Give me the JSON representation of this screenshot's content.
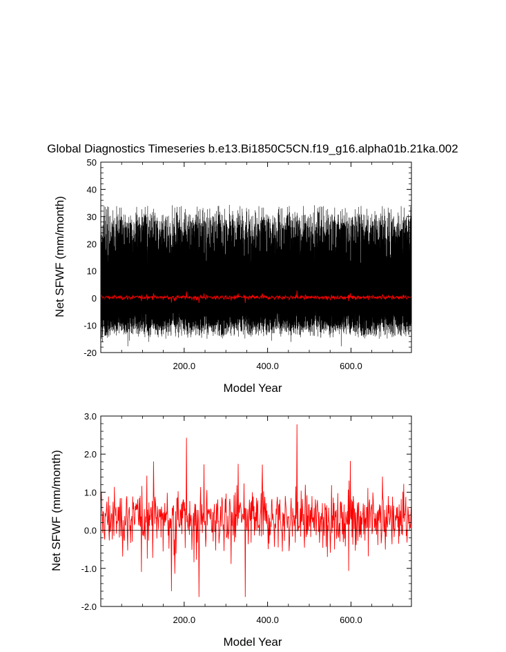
{
  "title": "Global Diagnostics Timeseries b.e13.Bi1850C5CN.f19_g16.alpha01b.21ka.002",
  "chart_data": [
    {
      "type": "line",
      "xlabel": "Model Year",
      "ylabel": "Net SFWF (mm/month)",
      "xlim": [
        0,
        745
      ],
      "ylim": [
        -20,
        50
      ],
      "xticks": [
        200,
        400,
        600
      ],
      "xtick_labels": [
        "200.0",
        "400.0",
        "600.0"
      ],
      "yticks": [
        -20,
        -10,
        0,
        10,
        20,
        30,
        40,
        50
      ],
      "ytick_labels": [
        "-20",
        "-10",
        "0",
        "10",
        "20",
        "30",
        "40",
        "50"
      ],
      "grid": false,
      "series": [
        {
          "style": "monthly",
          "color": "#000000",
          "n_points": 8940,
          "envelope_max": [
            32,
            38
          ],
          "envelope_min": [
            -12,
            -18
          ]
        },
        {
          "style": "annual mean",
          "color": "#ff0000",
          "n_points": 745,
          "range": [
            -1.0,
            1.3
          ]
        }
      ],
      "reference_line": {
        "y": 0,
        "color": "#000000"
      }
    },
    {
      "type": "line",
      "xlabel": "Model Year",
      "ylabel": "Net SFWF (mm/month)",
      "xlim": [
        0,
        745
      ],
      "ylim": [
        -2.0,
        3.0
      ],
      "xticks": [
        200,
        400,
        600
      ],
      "xtick_labels": [
        "200.0",
        "400.0",
        "600.0"
      ],
      "yticks": [
        -2,
        -1,
        0,
        1,
        2,
        3
      ],
      "ytick_labels": [
        "-2.0",
        "-1.0",
        "0.0",
        "1.0",
        "2.0",
        "3.0"
      ],
      "grid": false,
      "series": [
        {
          "style": "annual mean",
          "color": "#ff0000",
          "n_points": 745,
          "range": [
            -1.75,
            2.78
          ]
        }
      ],
      "reference_line": {
        "y": 0,
        "color": "#000000"
      }
    }
  ]
}
